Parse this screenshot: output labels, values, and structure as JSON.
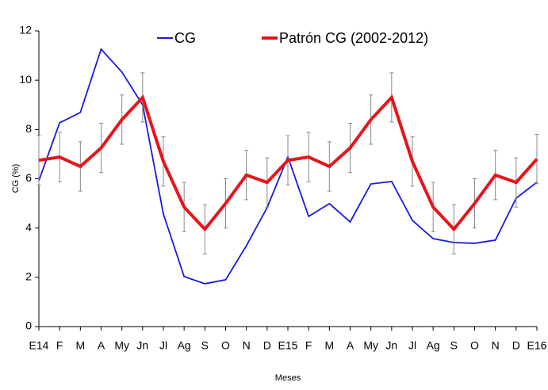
{
  "chart_data": {
    "type": "line",
    "x_label": "Meses",
    "y_label": "CG (%)",
    "categories": [
      "E14",
      "F",
      "M",
      "A",
      "My",
      "Jn",
      "Jl",
      "Ag",
      "S",
      "O",
      "N",
      "D",
      "E15",
      "F",
      "M",
      "A",
      "My",
      "Jn",
      "Jl",
      "Ag",
      "S",
      "O",
      "N",
      "D",
      "E16"
    ],
    "series": [
      {
        "name": "CG",
        "color": "#1a1ae0",
        "values": [
          5.92,
          8.27,
          8.69,
          11.26,
          10.33,
          9.0,
          4.57,
          2.03,
          1.74,
          1.9,
          3.28,
          4.83,
          6.89,
          4.47,
          4.99,
          4.25,
          5.79,
          5.89,
          4.31,
          3.57,
          3.41,
          3.38,
          3.51,
          5.21,
          5.86
        ]
      },
      {
        "name": "Patrón CG (2002-2012)",
        "color": "#e8141b",
        "values": [
          6.75,
          6.88,
          6.5,
          7.25,
          8.4,
          9.3,
          6.7,
          4.85,
          3.95,
          5.0,
          6.15,
          5.85,
          6.75,
          6.88,
          6.5,
          7.25,
          8.4,
          9.3,
          6.7,
          4.85,
          3.95,
          5.0,
          6.15,
          5.85,
          6.8
        ],
        "errors": [
          1,
          1,
          1,
          1,
          1,
          1,
          1,
          1,
          1,
          1,
          1,
          1,
          1,
          1,
          1,
          1,
          1,
          1,
          1,
          1,
          1,
          1,
          1,
          1,
          1
        ]
      }
    ],
    "ylim": [
      0,
      12
    ],
    "yticks": [
      0,
      2,
      4,
      6,
      8,
      10,
      12
    ],
    "legend": "top"
  }
}
